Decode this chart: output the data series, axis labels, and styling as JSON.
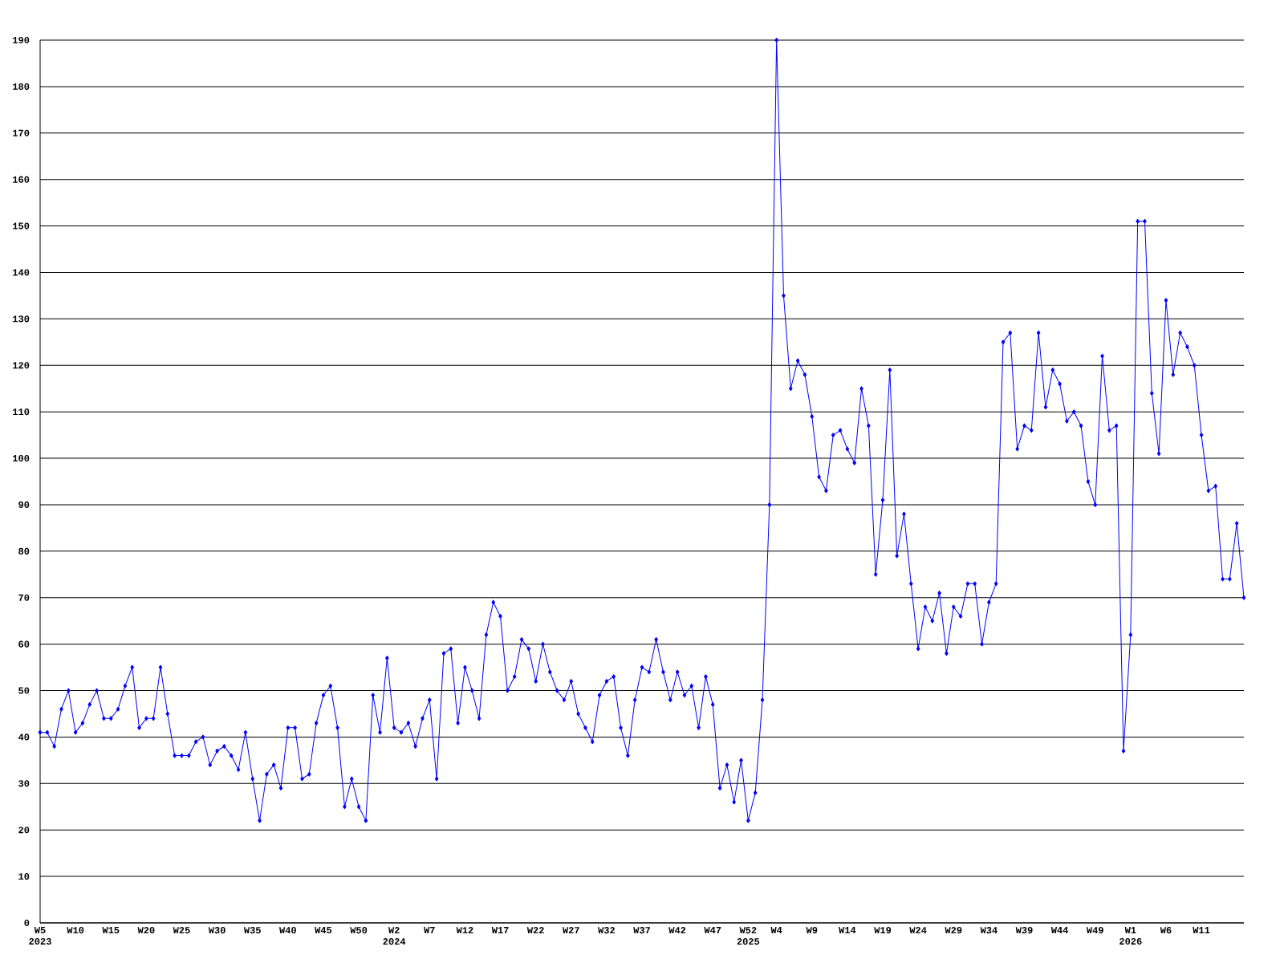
{
  "chart_data": {
    "type": "line",
    "color": "#0000ff",
    "marker": "diamond",
    "grid": "y",
    "ylim": [
      0,
      190
    ],
    "yticks": [
      0,
      10,
      20,
      30,
      40,
      50,
      60,
      70,
      80,
      90,
      100,
      110,
      120,
      130,
      140,
      150,
      160,
      170,
      180,
      190
    ],
    "categories": [
      "W5 2023",
      null,
      null,
      null,
      null,
      "W10",
      null,
      null,
      null,
      null,
      "W15",
      null,
      null,
      null,
      null,
      "W20",
      null,
      null,
      null,
      null,
      "W25",
      null,
      null,
      null,
      null,
      "W30",
      null,
      null,
      null,
      null,
      "W35",
      null,
      null,
      null,
      null,
      "W40",
      null,
      null,
      null,
      null,
      "W45",
      null,
      null,
      null,
      null,
      "W50",
      null,
      null,
      null,
      null,
      "W2 2024",
      null,
      null,
      null,
      null,
      "W7",
      null,
      null,
      null,
      null,
      "W12",
      null,
      null,
      null,
      null,
      "W17",
      null,
      null,
      null,
      null,
      "W22",
      null,
      null,
      null,
      null,
      "W27",
      null,
      null,
      null,
      null,
      "W32",
      null,
      null,
      null,
      null,
      "W37",
      null,
      null,
      null,
      null,
      "W42",
      null,
      null,
      null,
      null,
      "W47",
      null,
      null,
      null,
      null,
      "W52 2025",
      null,
      null,
      null,
      "W4",
      null,
      null,
      null,
      null,
      "W9",
      null,
      null,
      null,
      null,
      "W14",
      null,
      null,
      null,
      null,
      "W19",
      null,
      null,
      null,
      null,
      "W24",
      null,
      null,
      null,
      null,
      "W29",
      null,
      null,
      null,
      null,
      "W34",
      null,
      null,
      null,
      null,
      "W39",
      null,
      null,
      null,
      null,
      "W44",
      null,
      null,
      null,
      null,
      "W49",
      null,
      null,
      null,
      null,
      "W1 2026",
      null,
      null,
      null,
      null,
      "W6",
      null,
      null,
      null,
      null,
      "W11",
      null,
      null,
      null,
      null,
      null,
      null
    ],
    "values": [
      41,
      41,
      38,
      46,
      50,
      41,
      43,
      47,
      50,
      44,
      44,
      46,
      51,
      55,
      42,
      44,
      44,
      55,
      45,
      36,
      36,
      36,
      39,
      40,
      34,
      37,
      38,
      36,
      33,
      41,
      31,
      22,
      32,
      34,
      29,
      42,
      42,
      31,
      32,
      43,
      49,
      51,
      42,
      25,
      31,
      25,
      22,
      49,
      41,
      57,
      42,
      41,
      43,
      38,
      44,
      48,
      31,
      58,
      59,
      43,
      55,
      50,
      44,
      62,
      69,
      66,
      50,
      53,
      61,
      59,
      52,
      60,
      54,
      50,
      48,
      52,
      45,
      42,
      39,
      49,
      52,
      53,
      42,
      36,
      48,
      55,
      54,
      61,
      54,
      48,
      54,
      49,
      51,
      42,
      53,
      47,
      29,
      34,
      26,
      35,
      22,
      28,
      48,
      90,
      190,
      135,
      115,
      121,
      118,
      109,
      96,
      93,
      105,
      106,
      102,
      99,
      115,
      107,
      75,
      91,
      119,
      79,
      88,
      73,
      59,
      68,
      65,
      71,
      58,
      68,
      66,
      73,
      73,
      60,
      69,
      73,
      125,
      127,
      102,
      107,
      106,
      127,
      111,
      119,
      116,
      108,
      110,
      107,
      95,
      90,
      122,
      106,
      107,
      37,
      62,
      151,
      151,
      114,
      101,
      134,
      118,
      127,
      124,
      120,
      105,
      93,
      94,
      74,
      74,
      86,
      70
    ]
  }
}
